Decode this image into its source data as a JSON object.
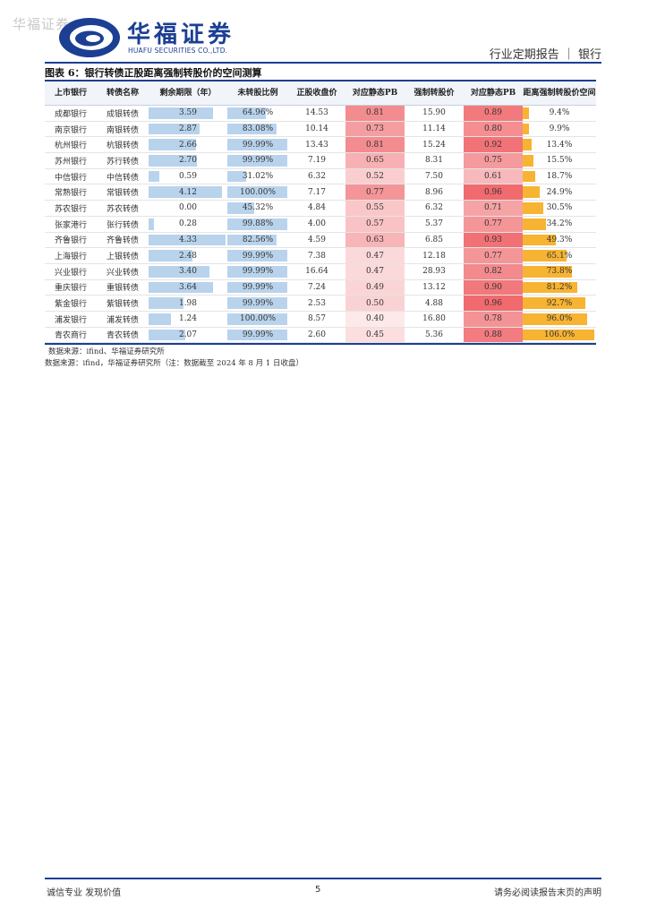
{
  "watermark": "华福证券",
  "header": {
    "brand_cn": "华福证券",
    "brand_en": "HUAFU SECURITIES CO.,LTD.",
    "report_type": "行业定期报告 ｜ 银行",
    "brand_color": "#1b3f93"
  },
  "figure": {
    "title": "图表 6：银行转债正股距离强制转股价的空间测算",
    "source_inner": "数据来源：ifind、华福证券研究所",
    "source_outer": "数据来源：ifind，华福证券研究所（注：数据截至 2024 年 8 月 1 日收盘）"
  },
  "table": {
    "headers": [
      "上市银行",
      "转债名称",
      "剩余期限（年）",
      "未转股比例",
      "正股收盘价",
      "对应静态PB",
      "强制转股价",
      "对应静态PB",
      "距离强制转股价空间"
    ],
    "colors": {
      "bar_blue": "#b9d3ec",
      "bar_orange": "#f7b332",
      "heat_high": "#f06a6e",
      "heat_low": "#fde9ea"
    },
    "rows": [
      {
        "bank": "成都银行",
        "bond": "成银转债",
        "years": "3.59",
        "unconverted": "64.96%",
        "close": "14.53",
        "pb1": "0.81",
        "force": "15.90",
        "pb2": "0.89",
        "space": "9.4%"
      },
      {
        "bank": "南京银行",
        "bond": "南银转债",
        "years": "2.87",
        "unconverted": "83.08%",
        "close": "10.14",
        "pb1": "0.73",
        "force": "11.14",
        "pb2": "0.80",
        "space": "9.9%"
      },
      {
        "bank": "杭州银行",
        "bond": "杭银转债",
        "years": "2.66",
        "unconverted": "99.99%",
        "close": "13.43",
        "pb1": "0.81",
        "force": "15.24",
        "pb2": "0.92",
        "space": "13.4%"
      },
      {
        "bank": "苏州银行",
        "bond": "苏行转债",
        "years": "2.70",
        "unconverted": "99.99%",
        "close": "7.19",
        "pb1": "0.65",
        "force": "8.31",
        "pb2": "0.75",
        "space": "15.5%"
      },
      {
        "bank": "中信银行",
        "bond": "中信转债",
        "years": "0.59",
        "unconverted": "31.02%",
        "close": "6.32",
        "pb1": "0.52",
        "force": "7.50",
        "pb2": "0.61",
        "space": "18.7%"
      },
      {
        "bank": "常熟银行",
        "bond": "常银转债",
        "years": "4.12",
        "unconverted": "100.00%",
        "close": "7.17",
        "pb1": "0.77",
        "force": "8.96",
        "pb2": "0.96",
        "space": "24.9%"
      },
      {
        "bank": "苏农银行",
        "bond": "苏农转债",
        "years": "0.00",
        "unconverted": "45.32%",
        "close": "4.84",
        "pb1": "0.55",
        "force": "6.32",
        "pb2": "0.71",
        "space": "30.5%"
      },
      {
        "bank": "张家港行",
        "bond": "张行转债",
        "years": "0.28",
        "unconverted": "99.88%",
        "close": "4.00",
        "pb1": "0.57",
        "force": "5.37",
        "pb2": "0.77",
        "space": "34.2%"
      },
      {
        "bank": "齐鲁银行",
        "bond": "齐鲁转债",
        "years": "4.33",
        "unconverted": "82.56%",
        "close": "4.59",
        "pb1": "0.63",
        "force": "6.85",
        "pb2": "0.93",
        "space": "49.3%"
      },
      {
        "bank": "上海银行",
        "bond": "上银转债",
        "years": "2.48",
        "unconverted": "99.99%",
        "close": "7.38",
        "pb1": "0.47",
        "force": "12.18",
        "pb2": "0.77",
        "space": "65.1%"
      },
      {
        "bank": "兴业银行",
        "bond": "兴业转债",
        "years": "3.40",
        "unconverted": "99.99%",
        "close": "16.64",
        "pb1": "0.47",
        "force": "28.93",
        "pb2": "0.82",
        "space": "73.8%"
      },
      {
        "bank": "重庆银行",
        "bond": "重银转债",
        "years": "3.64",
        "unconverted": "99.99%",
        "close": "7.24",
        "pb1": "0.49",
        "force": "13.12",
        "pb2": "0.90",
        "space": "81.2%"
      },
      {
        "bank": "紫金银行",
        "bond": "紫银转债",
        "years": "1.98",
        "unconverted": "99.99%",
        "close": "2.53",
        "pb1": "0.50",
        "force": "4.88",
        "pb2": "0.96",
        "space": "92.7%"
      },
      {
        "bank": "浦发银行",
        "bond": "浦发转债",
        "years": "1.24",
        "unconverted": "100.00%",
        "close": "8.57",
        "pb1": "0.40",
        "force": "16.80",
        "pb2": "0.78",
        "space": "96.0%"
      },
      {
        "bank": "青农商行",
        "bond": "青农转债",
        "years": "2.07",
        "unconverted": "99.99%",
        "close": "2.60",
        "pb1": "0.45",
        "force": "5.36",
        "pb2": "0.88",
        "space": "106.0%"
      }
    ]
  },
  "footer": {
    "left": "诚信专业  发现价值",
    "page": "5",
    "right": "请务必阅读报告末页的声明"
  }
}
